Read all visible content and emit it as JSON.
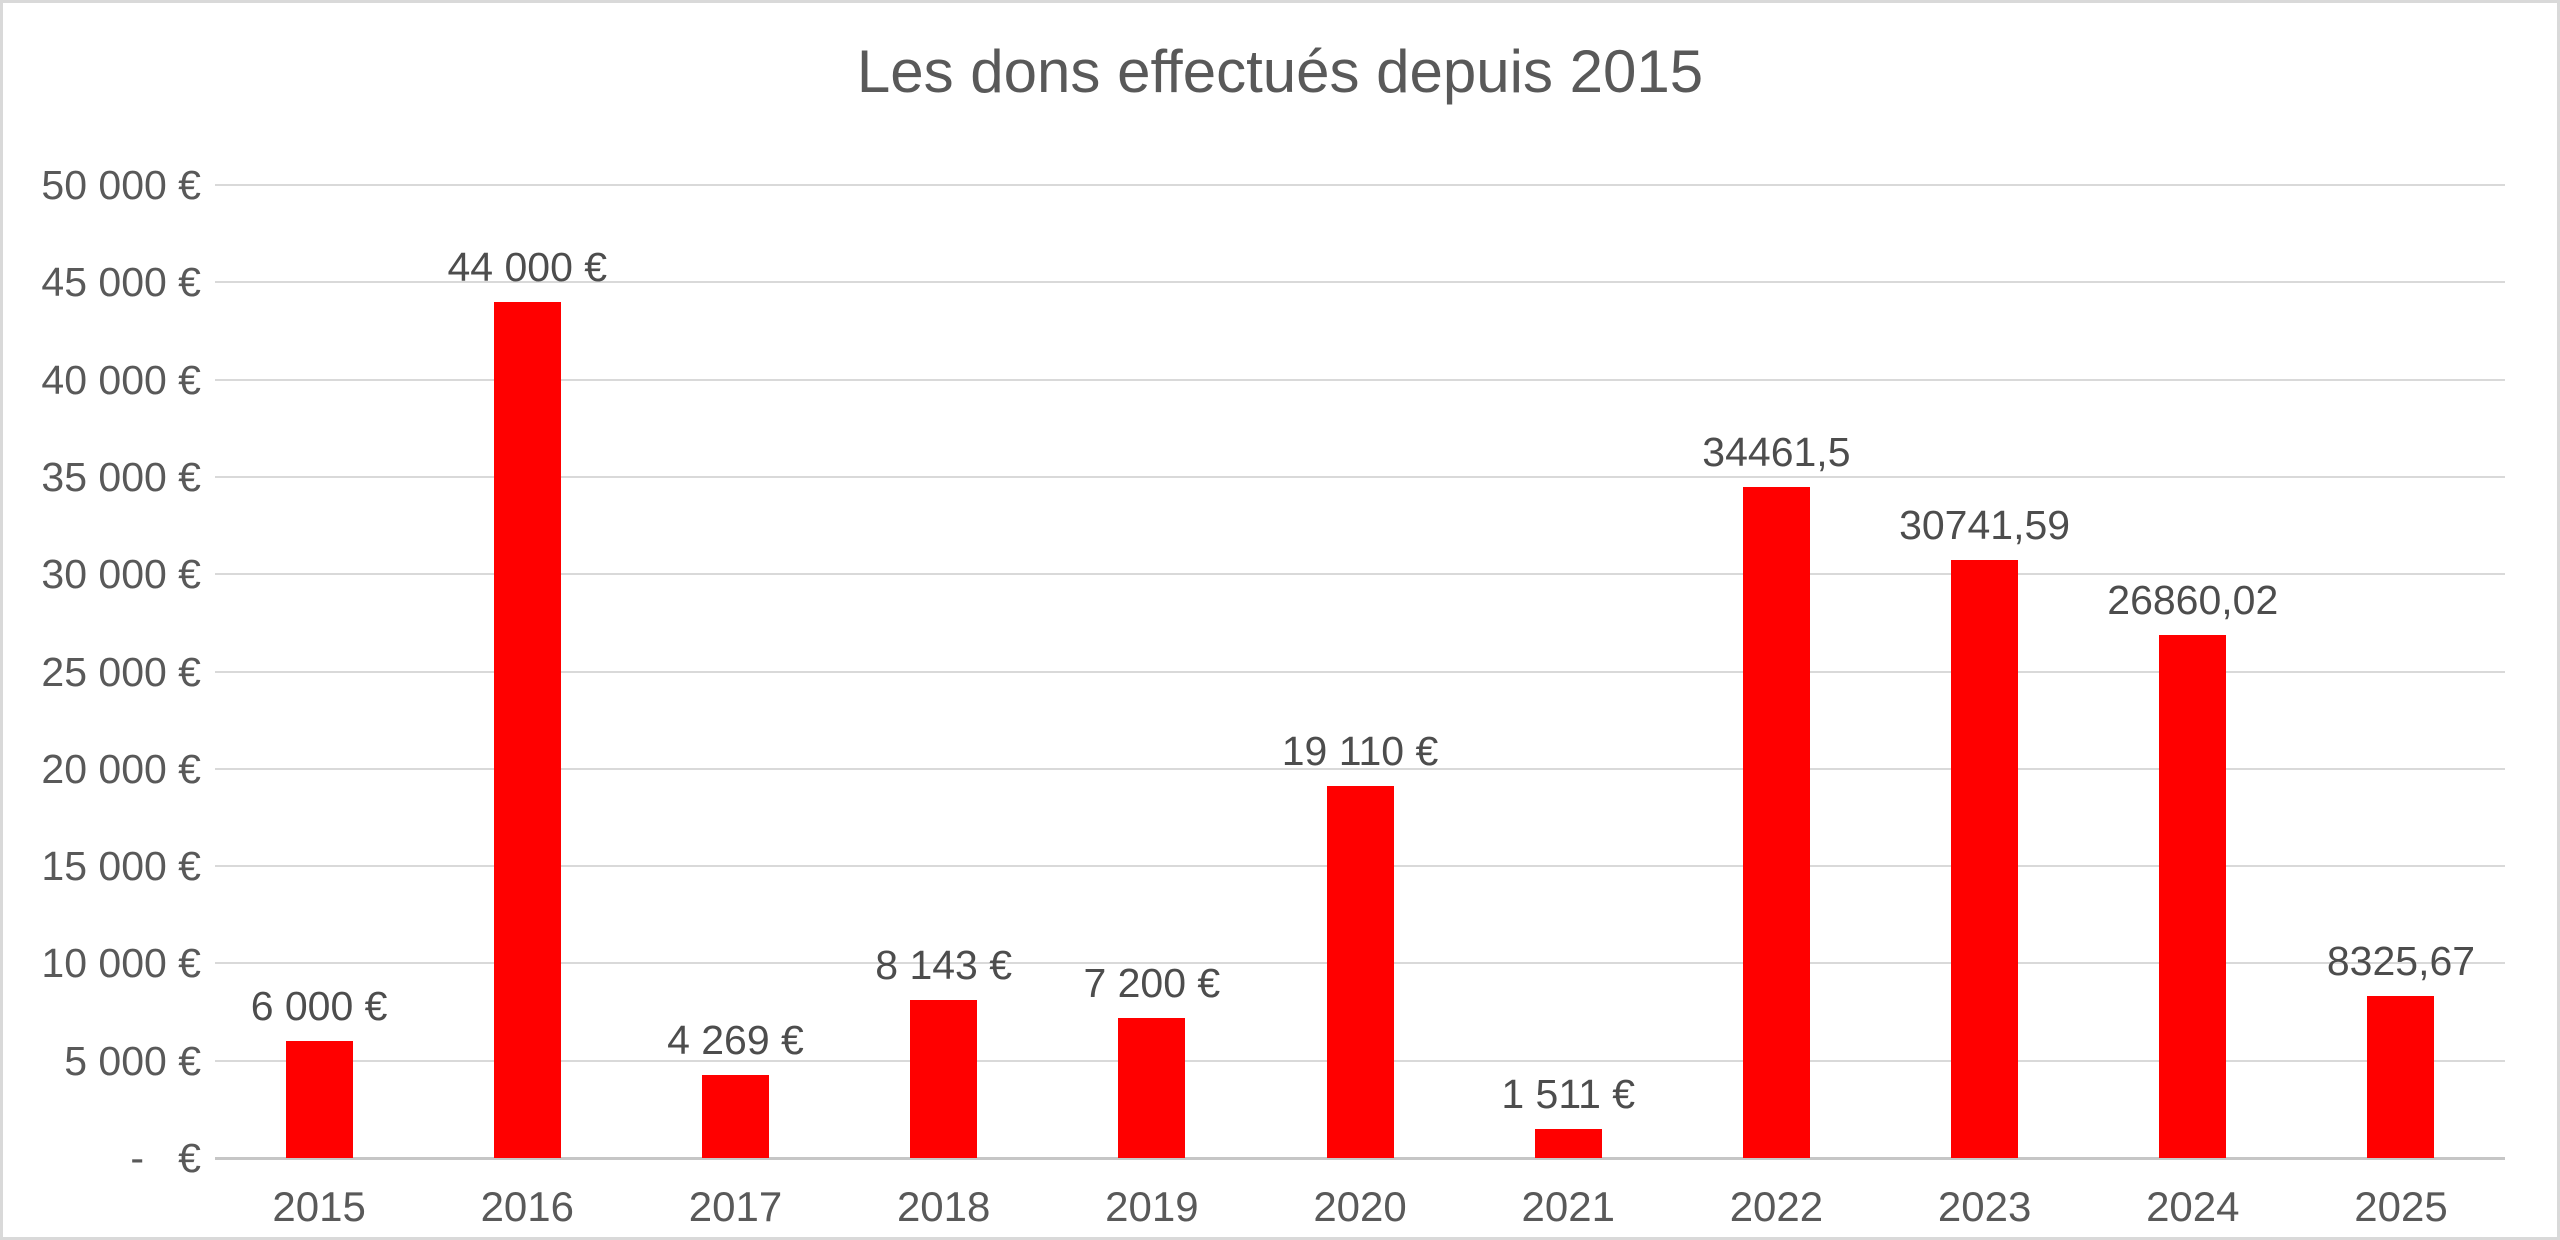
{
  "chart_data": {
    "type": "bar",
    "title": "Les dons effectués depuis 2015",
    "categories": [
      "2015",
      "2016",
      "2017",
      "2018",
      "2019",
      "2020",
      "2021",
      "2022",
      "2023",
      "2024",
      "2025"
    ],
    "values": [
      6000,
      44000,
      4269,
      8143,
      7200,
      19110,
      1511,
      34461.5,
      30741.59,
      26860.02,
      8325.67
    ],
    "bar_labels": [
      "6 000 €",
      "44 000 €",
      "4 269 €",
      "8 143 €",
      "7 200 €",
      "19 110 €",
      "1 511 €",
      "34461,5",
      "30741,59",
      "26860,02",
      "8325,67"
    ],
    "ytick_labels": [
      "50 000 €",
      "45 000 €",
      "40 000 €",
      "35 000 €",
      "30 000 €",
      "25 000 €",
      "20 000 €",
      "15 000 €",
      "10 000 €",
      "5 000 €",
      "-   €"
    ],
    "ylim": [
      0,
      50000
    ],
    "ytick_step": 5000,
    "xlabel": "",
    "ylabel": "",
    "grid": true,
    "legend": false,
    "bar_color": "#ff0000",
    "text_color": "#595959",
    "gridline_color": "#d9d9d9"
  }
}
